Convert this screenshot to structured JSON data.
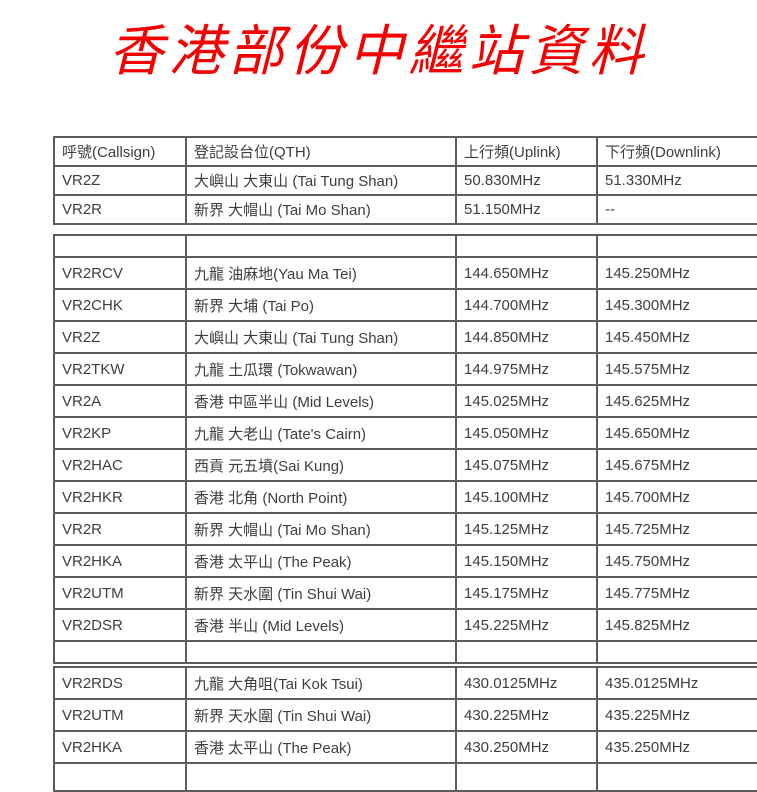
{
  "title": "香港部份中繼站資料",
  "colors": {
    "title_red": "#f30000",
    "table_border": "#5d5d5d",
    "table_text": "#3e3e3e",
    "background": "#ffffff"
  },
  "column_semantics": [
    "callsign",
    "qth",
    "uplink",
    "downlink"
  ],
  "tables": [
    {
      "name": "band-50mhz",
      "header": [
        "呼號(Callsign)",
        "登記設台位(QTH)",
        "上行頻(Uplink)",
        "下行頻(Downlink)"
      ],
      "rows": [
        [
          "VR2Z",
          "大嶼山 大東山 (Tai Tung Shan)",
          "50.830MHz",
          "51.330MHz"
        ],
        [
          "VR2R",
          "新界 大帽山 (Tai Mo Shan)",
          "51.150MHz",
          "--"
        ]
      ]
    },
    {
      "name": "band-144mhz",
      "rows": [
        [
          "",
          "",
          "",
          ""
        ],
        [
          "VR2RCV",
          "九龍 油麻地(Yau Ma Tei)",
          "144.650MHz",
          "145.250MHz"
        ],
        [
          "VR2CHK",
          "新界 大埔 (Tai Po)",
          "144.700MHz",
          "145.300MHz"
        ],
        [
          "VR2Z",
          "大嶼山 大東山 (Tai Tung Shan)",
          "144.850MHz",
          "145.450MHz"
        ],
        [
          "VR2TKW",
          "九龍 土瓜環 (Tokwawan)",
          "144.975MHz",
          "145.575MHz"
        ],
        [
          "VR2A",
          "香港 中區半山 (Mid Levels)",
          "145.025MHz",
          "145.625MHz"
        ],
        [
          "VR2KP",
          "九龍 大老山 (Tate's Cairn)",
          "145.050MHz",
          "145.650MHz"
        ],
        [
          "VR2HAC",
          "西貢 元五墳(Sai Kung)",
          "145.075MHz",
          "145.675MHz"
        ],
        [
          "VR2HKR",
          "香港 北角 (North Point)",
          "145.100MHz",
          "145.700MHz"
        ],
        [
          "VR2R",
          "新界 大帽山 (Tai Mo Shan)",
          "145.125MHz",
          "145.725MHz"
        ],
        [
          "VR2HKA",
          "香港 太平山 (The Peak)",
          "145.150MHz",
          "145.750MHz"
        ],
        [
          "VR2UTM",
          "新界 天水圍 (Tin Shui Wai)",
          "145.175MHz",
          "145.775MHz"
        ],
        [
          "VR2DSR",
          "香港 半山 (Mid Levels)",
          "145.225MHz",
          "145.825MHz"
        ],
        [
          "",
          "",
          "",
          ""
        ]
      ]
    },
    {
      "name": "band-430mhz",
      "has_clipped_partial_row": true,
      "rows": [
        [
          "VR2RDS",
          "九龍 大角咀(Tai Kok Tsui)",
          "430.0125MHz",
          "435.0125MHz"
        ],
        [
          "VR2UTM",
          "新界 天水圍 (Tin Shui Wai)",
          "430.225MHz",
          "435.225MHz"
        ],
        [
          "VR2HKA",
          "香港 太平山 (The Peak)",
          "430.250MHz",
          "435.250MHz"
        ]
      ]
    }
  ]
}
